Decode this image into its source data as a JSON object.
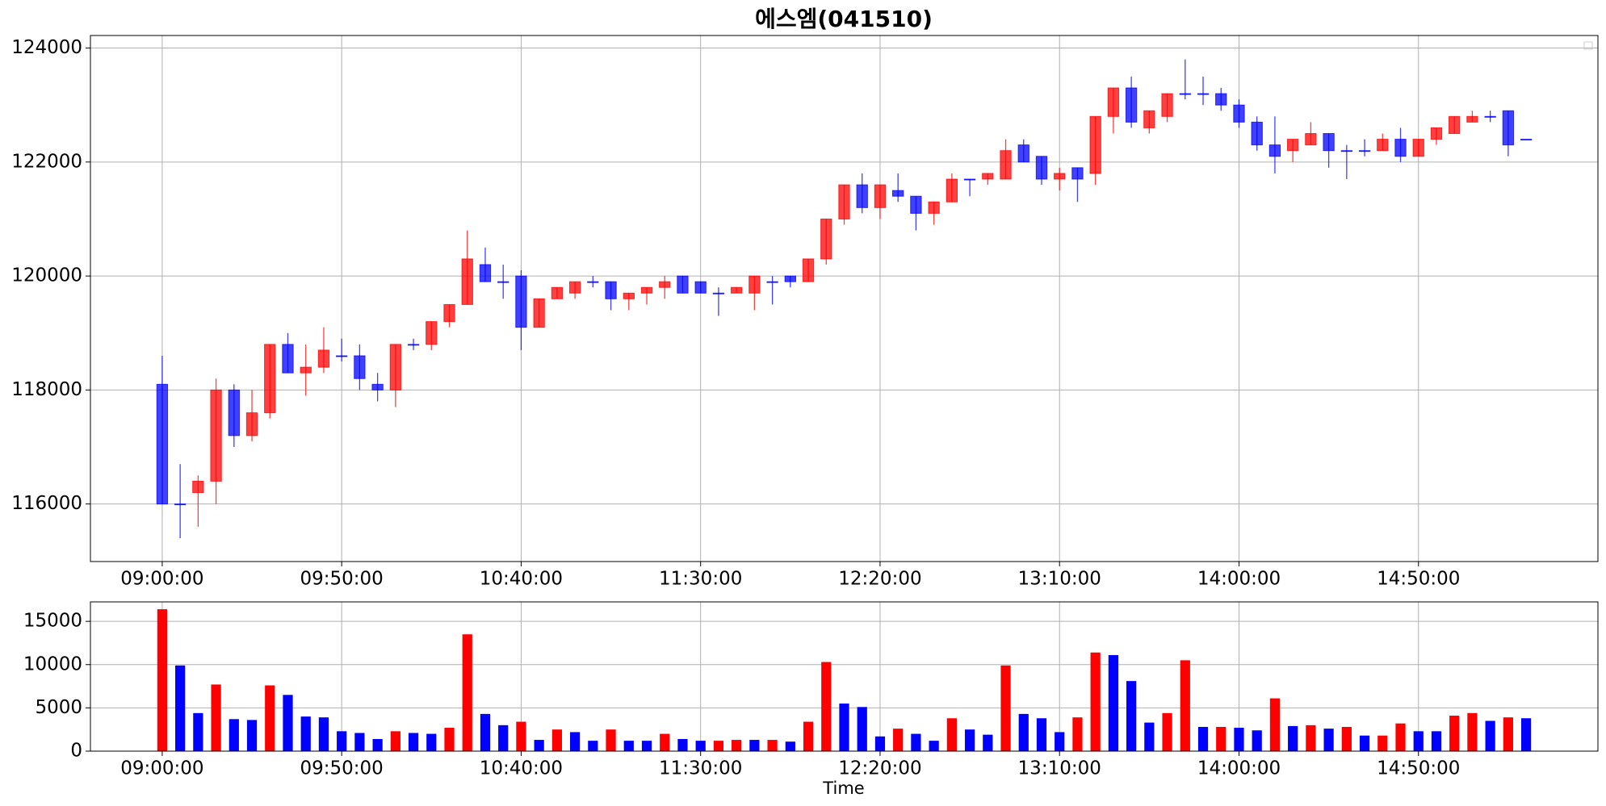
{
  "chart_data": [
    {
      "type": "candlestick",
      "title": "에스엠(041510)",
      "categories": [
        "09:00:00",
        null,
        null,
        null,
        null,
        null,
        null,
        null,
        null,
        null,
        "09:50:00",
        null,
        null,
        null,
        null,
        null,
        null,
        null,
        null,
        null,
        "10:40:00",
        null,
        null,
        null,
        null,
        null,
        null,
        null,
        null,
        null,
        "11:30:00",
        null,
        null,
        null,
        null,
        null,
        null,
        null,
        null,
        null,
        "12:20:00",
        null,
        null,
        null,
        null,
        null,
        null,
        null,
        null,
        null,
        "13:10:00",
        null,
        null,
        null,
        null,
        null,
        null,
        null,
        null,
        null,
        "14:00:00",
        null,
        null,
        null,
        null,
        null,
        null,
        null,
        null,
        null,
        "14:50:00",
        null,
        null,
        null,
        null,
        null,
        null
      ],
      "open": [
        118100,
        116000,
        116200,
        116400,
        118000,
        117200,
        117600,
        118800,
        118300,
        118400,
        118600,
        118600,
        118100,
        118000,
        118800,
        118800,
        119200,
        119500,
        120200,
        119900,
        120000,
        119100,
        119600,
        119700,
        119900,
        119900,
        119600,
        119700,
        119800,
        120000,
        119900,
        119700,
        119700,
        119700,
        119900,
        120000,
        119900,
        120300,
        121000,
        121600,
        121200,
        121500,
        121400,
        121100,
        121300,
        121700,
        121700,
        121700,
        122300,
        122100,
        121700,
        121900,
        121800,
        122800,
        123300,
        122600,
        122800,
        123200,
        123200,
        123200,
        123000,
        122700,
        122300,
        122200,
        122300,
        122500,
        122200,
        122200,
        122200,
        122400,
        122100,
        122400,
        122500,
        122700,
        122800,
        122900,
        122400
      ],
      "high": [
        118600,
        116700,
        116500,
        118200,
        118100,
        118000,
        118800,
        119000,
        118800,
        119100,
        118900,
        118800,
        118300,
        118800,
        118900,
        119200,
        119500,
        120800,
        120500,
        120200,
        120100,
        119600,
        119800,
        119900,
        120000,
        119900,
        119700,
        119800,
        120000,
        120000,
        119900,
        119800,
        119800,
        120000,
        120000,
        120000,
        120300,
        121000,
        121600,
        121800,
        121600,
        121800,
        121400,
        121300,
        121800,
        121700,
        121800,
        122400,
        122400,
        122100,
        121900,
        121900,
        122800,
        123300,
        123500,
        122900,
        123200,
        123800,
        123500,
        123300,
        123100,
        122800,
        122800,
        122400,
        122700,
        122500,
        122300,
        122400,
        122500,
        122600,
        122400,
        122600,
        122800,
        122900,
        122900,
        122900,
        122400
      ],
      "low": [
        116000,
        115400,
        115600,
        116000,
        117000,
        117100,
        117500,
        118300,
        117900,
        118300,
        118500,
        118000,
        117800,
        117700,
        118700,
        118700,
        119100,
        119500,
        119900,
        119600,
        118700,
        119100,
        119600,
        119600,
        119800,
        119400,
        119400,
        119500,
        119600,
        119700,
        119700,
        119300,
        119700,
        119400,
        119500,
        119800,
        119900,
        120200,
        120900,
        121100,
        121000,
        121300,
        120800,
        120900,
        121300,
        121400,
        121600,
        121700,
        122000,
        121600,
        121500,
        121300,
        121600,
        122500,
        122600,
        122500,
        122700,
        123100,
        123000,
        122900,
        122600,
        122200,
        121800,
        122000,
        122300,
        121900,
        121700,
        122100,
        122200,
        122000,
        122100,
        122300,
        122500,
        122700,
        122700,
        122100,
        122400
      ],
      "close": [
        116000,
        116000,
        116400,
        118000,
        117200,
        117600,
        118800,
        118300,
        118400,
        118700,
        118600,
        118200,
        118000,
        118800,
        118800,
        119200,
        119500,
        120300,
        119900,
        119900,
        119100,
        119600,
        119800,
        119900,
        119900,
        119600,
        119700,
        119800,
        119900,
        119700,
        119700,
        119700,
        119800,
        120000,
        119900,
        119900,
        120300,
        121000,
        121600,
        121200,
        121600,
        121400,
        121100,
        121300,
        121700,
        121700,
        121800,
        122200,
        122000,
        121700,
        121800,
        121700,
        122800,
        123300,
        122700,
        122900,
        123200,
        123200,
        123200,
        123000,
        122700,
        122300,
        122100,
        122400,
        122500,
        122200,
        122200,
        122200,
        122400,
        122100,
        122400,
        122600,
        122800,
        122800,
        122800,
        122300,
        122400
      ],
      "up_color": "#ff0000",
      "down_color": "#0000ff",
      "xlim": [
        -4,
        80
      ],
      "ylim": [
        114990,
        124220
      ],
      "yticks": [
        116000,
        118000,
        120000,
        122000,
        124000
      ],
      "grid": true
    },
    {
      "type": "bar",
      "xlabel": "Time",
      "categories": [
        "09:00:00",
        null,
        null,
        null,
        null,
        null,
        null,
        null,
        null,
        null,
        "09:50:00",
        null,
        null,
        null,
        null,
        null,
        null,
        null,
        null,
        null,
        "10:40:00",
        null,
        null,
        null,
        null,
        null,
        null,
        null,
        null,
        null,
        "11:30:00",
        null,
        null,
        null,
        null,
        null,
        null,
        null,
        null,
        null,
        "12:20:00",
        null,
        null,
        null,
        null,
        null,
        null,
        null,
        null,
        null,
        "13:10:00",
        null,
        null,
        null,
        null,
        null,
        null,
        null,
        null,
        null,
        "14:00:00",
        null,
        null,
        null,
        null,
        null,
        null,
        null,
        null,
        null,
        "14:50:00",
        null,
        null,
        null,
        null,
        null,
        null
      ],
      "values": [
        16400,
        9900,
        4400,
        7700,
        3700,
        3600,
        7600,
        6500,
        4000,
        3900,
        2300,
        2100,
        1400,
        2300,
        2100,
        2000,
        2700,
        13500,
        4300,
        3000,
        3400,
        1300,
        2500,
        2200,
        1200,
        2500,
        1200,
        1200,
        2000,
        1400,
        1200,
        1200,
        1300,
        1300,
        1300,
        1100,
        3400,
        10300,
        5500,
        5100,
        1700,
        2600,
        2000,
        1200,
        3800,
        2500,
        1900,
        9900,
        4300,
        3800,
        2200,
        3900,
        11400,
        11100,
        8100,
        3300,
        4400,
        10500,
        2800,
        2800,
        2700,
        2400,
        6100,
        2900,
        3000,
        2600,
        2800,
        1800,
        1800,
        3200,
        2300,
        2300,
        4100,
        4400,
        3500,
        3900,
        3800
      ],
      "colors": [
        "red",
        "blue",
        "blue",
        "red",
        "blue",
        "blue",
        "red",
        "blue",
        "blue",
        "blue",
        "blue",
        "blue",
        "blue",
        "red",
        "blue",
        "blue",
        "red",
        "red",
        "blue",
        "blue",
        "red",
        "blue",
        "red",
        "blue",
        "blue",
        "red",
        "blue",
        "blue",
        "red",
        "blue",
        "blue",
        "red",
        "red",
        "blue",
        "red",
        "blue",
        "red",
        "red",
        "blue",
        "blue",
        "blue",
        "red",
        "blue",
        "blue",
        "red",
        "blue",
        "blue",
        "red",
        "blue",
        "blue",
        "blue",
        "red",
        "red",
        "blue",
        "blue",
        "blue",
        "red",
        "red",
        "blue",
        "red",
        "blue",
        "blue",
        "red",
        "blue",
        "red",
        "blue",
        "red",
        "blue",
        "red",
        "red",
        "blue",
        "blue",
        "red",
        "red",
        "blue",
        "red",
        "blue"
      ],
      "xlim": [
        -4,
        80
      ],
      "ylim": [
        0,
        17250
      ],
      "yticks": [
        0,
        5000,
        10000,
        15000
      ],
      "grid": true
    }
  ]
}
